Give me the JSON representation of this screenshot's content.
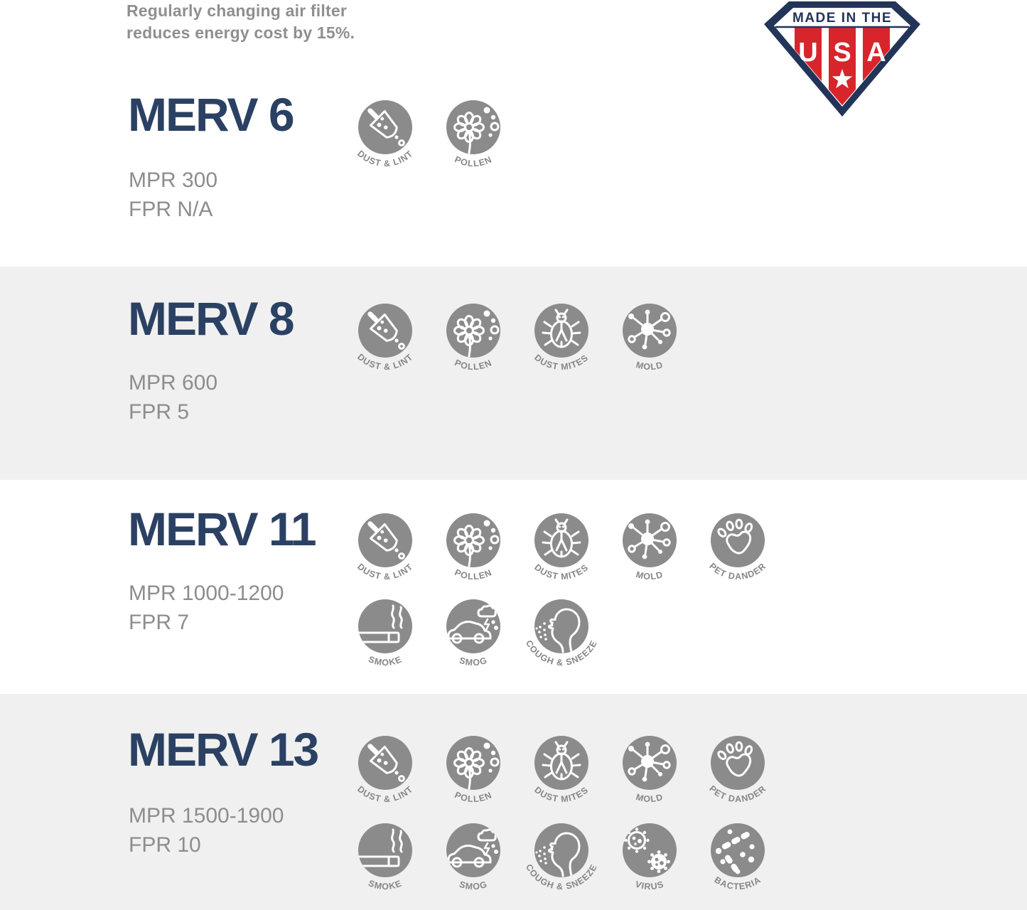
{
  "header": {
    "note_line1": "Regularly changing air filter",
    "note_line2": "reduces energy cost by 15%."
  },
  "badge": {
    "banner": "MADE IN THE",
    "letters": [
      "U",
      "S",
      "A"
    ]
  },
  "colors": {
    "heading_navy": "#2b4163",
    "text_gray": "#8d8d8d",
    "icon_gray": "#8b8b8b",
    "band_gray": "#f0f0f0",
    "badge_navy": "#223458",
    "badge_red": "#d8252c"
  },
  "sections": [
    {
      "title": "MERV 6",
      "mpr": "MPR 300",
      "fpr": "FPR N/A",
      "icon_rows": [
        [
          {
            "icon": "dust-lint",
            "label": "DUST & LINT"
          },
          {
            "icon": "pollen",
            "label": "POLLEN"
          }
        ]
      ]
    },
    {
      "title": "MERV 8",
      "mpr": "MPR 600",
      "fpr": "FPR 5",
      "icon_rows": [
        [
          {
            "icon": "dust-lint",
            "label": "DUST & LINT"
          },
          {
            "icon": "pollen",
            "label": "POLLEN"
          },
          {
            "icon": "dust-mites",
            "label": "DUST MITES"
          },
          {
            "icon": "mold",
            "label": "MOLD"
          }
        ]
      ]
    },
    {
      "title": "MERV 11",
      "mpr": "MPR 1000-1200",
      "fpr": "FPR 7",
      "icon_rows": [
        [
          {
            "icon": "dust-lint",
            "label": "DUST & LINT"
          },
          {
            "icon": "pollen",
            "label": "POLLEN"
          },
          {
            "icon": "dust-mites",
            "label": "DUST MITES"
          },
          {
            "icon": "mold",
            "label": "MOLD"
          },
          {
            "icon": "pet-dander",
            "label": "PET DANDER"
          }
        ],
        [
          {
            "icon": "smoke",
            "label": "SMOKE"
          },
          {
            "icon": "smog",
            "label": "SMOG"
          },
          {
            "icon": "cough-sneeze",
            "label": "COUGH & SNEEZE"
          }
        ]
      ]
    },
    {
      "title": "MERV 13",
      "mpr": "MPR 1500-1900",
      "fpr": "FPR 10",
      "icon_rows": [
        [
          {
            "icon": "dust-lint",
            "label": "DUST & LINT"
          },
          {
            "icon": "pollen",
            "label": "POLLEN"
          },
          {
            "icon": "dust-mites",
            "label": "DUST MITES"
          },
          {
            "icon": "mold",
            "label": "MOLD"
          },
          {
            "icon": "pet-dander",
            "label": "PET DANDER"
          }
        ],
        [
          {
            "icon": "smoke",
            "label": "SMOKE"
          },
          {
            "icon": "smog",
            "label": "SMOG"
          },
          {
            "icon": "cough-sneeze",
            "label": "COUGH & SNEEZE"
          },
          {
            "icon": "virus",
            "label": "VIRUS"
          },
          {
            "icon": "bacteria",
            "label": "BACTERIA"
          }
        ]
      ]
    }
  ]
}
